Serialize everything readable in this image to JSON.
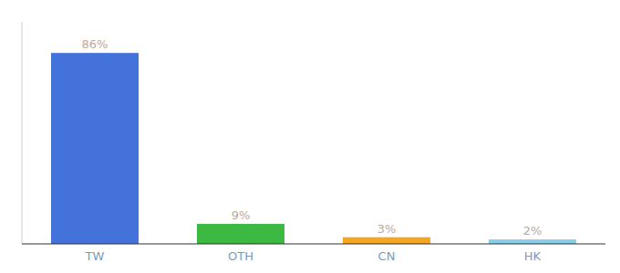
{
  "chart_data": {
    "type": "bar",
    "categories": [
      "TW",
      "OTH",
      "CN",
      "HK"
    ],
    "values": [
      86,
      9,
      3,
      2
    ],
    "value_labels": [
      "86%",
      "9%",
      "3%",
      "2%"
    ],
    "colors": [
      "#4472db",
      "#3cb843",
      "#f5a623",
      "#87ceeb"
    ],
    "ylim": [
      0,
      100
    ],
    "data_labels": true,
    "tick_labels": "x"
  }
}
